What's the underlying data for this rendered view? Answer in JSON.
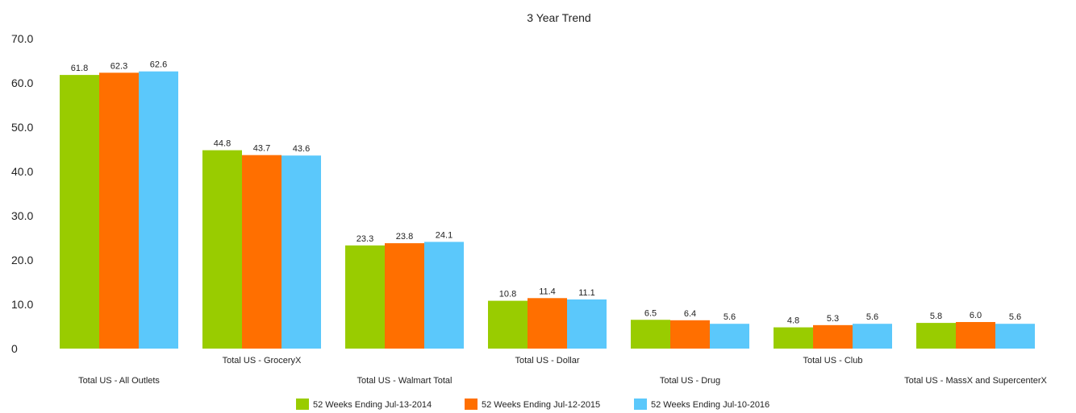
{
  "chart_data": {
    "type": "bar",
    "title": "3 Year Trend",
    "xlabel": "",
    "ylabel": "",
    "ylim": [
      0,
      70
    ],
    "yticks": [
      "0",
      "10.0",
      "20.0",
      "30.0",
      "40.0",
      "50.0",
      "60.0",
      "70.0"
    ],
    "categories": [
      "Total US - All Outlets",
      "Total US - GroceryX",
      "Total US - Walmart Total",
      "Total US - Dollar",
      "Total US - Drug",
      "Total US - Club",
      "Total US - MassX and SupercenterX"
    ],
    "series": [
      {
        "name": "52 Weeks Ending Jul-13-2014",
        "color": "#99cc00",
        "values": [
          61.8,
          44.8,
          23.3,
          10.8,
          6.5,
          4.8,
          5.8
        ],
        "labels": [
          "61.8",
          "44.8",
          "23.3",
          "10.8",
          "6.5",
          "4.8",
          "5.8"
        ]
      },
      {
        "name": "52 Weeks Ending Jul-12-2015",
        "color": "#ff6f00",
        "values": [
          62.3,
          43.7,
          23.8,
          11.4,
          6.4,
          5.3,
          6.0
        ],
        "labels": [
          "62.3",
          "43.7",
          "23.8",
          "11.4",
          "6.4",
          "5.3",
          "6.0"
        ]
      },
      {
        "name": "52 Weeks Ending Jul-10-2016",
        "color": "#5bc8fb",
        "values": [
          62.6,
          43.6,
          24.1,
          11.1,
          5.6,
          5.6,
          5.6
        ],
        "labels": [
          "62.6",
          "43.6",
          "24.1",
          "11.1",
          "5.6",
          "5.6",
          "5.6"
        ]
      }
    ],
    "grid": false,
    "legend_position": "bottom-center"
  }
}
